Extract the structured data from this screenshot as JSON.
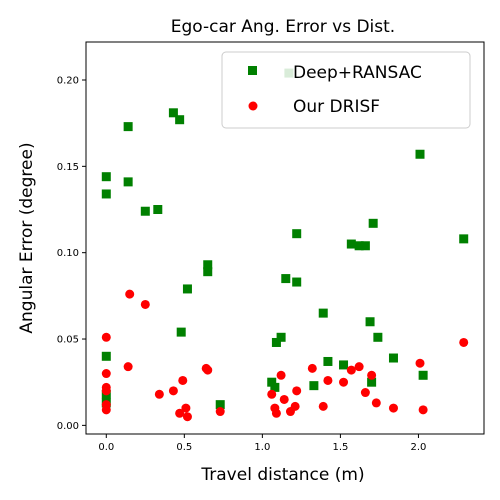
{
  "chart_data": {
    "type": "scatter",
    "title": "Ego-car Ang. Error vs Dist.",
    "xlabel": "Travel distance (m)",
    "ylabel": "Angular Error (degree)",
    "xlim": [
      -0.13,
      2.42
    ],
    "ylim": [
      -0.005,
      0.222
    ],
    "xticks": [
      0.0,
      0.5,
      1.0,
      1.5,
      2.0
    ],
    "xtick_labels": [
      "0.0",
      "0.5",
      "1.0",
      "1.5",
      "2.0"
    ],
    "yticks": [
      0.0,
      0.05,
      0.1,
      0.15,
      0.2
    ],
    "ytick_labels": [
      "0.00",
      "0.05",
      "0.10",
      "0.15",
      "0.20"
    ],
    "grid": false,
    "legend_position": "top-right",
    "series": [
      {
        "name": "Deep+RANSAC",
        "marker": "square",
        "color": "#008000",
        "points": [
          [
            0.0,
            0.134
          ],
          [
            0.0,
            0.144
          ],
          [
            0.0,
            0.04
          ],
          [
            0.0,
            0.018
          ],
          [
            0.0,
            0.013
          ],
          [
            0.14,
            0.173
          ],
          [
            0.14,
            0.141
          ],
          [
            0.25,
            0.124
          ],
          [
            0.33,
            0.125
          ],
          [
            0.43,
            0.181
          ],
          [
            0.47,
            0.177
          ],
          [
            0.48,
            0.054
          ],
          [
            0.52,
            0.079
          ],
          [
            0.65,
            0.093
          ],
          [
            0.65,
            0.089
          ],
          [
            0.73,
            0.012
          ],
          [
            1.06,
            0.025
          ],
          [
            1.08,
            0.022
          ],
          [
            1.09,
            0.048
          ],
          [
            1.12,
            0.051
          ],
          [
            1.15,
            0.085
          ],
          [
            1.17,
            0.204
          ],
          [
            1.22,
            0.111
          ],
          [
            1.22,
            0.083
          ],
          [
            1.33,
            0.023
          ],
          [
            1.39,
            0.065
          ],
          [
            1.42,
            0.037
          ],
          [
            1.52,
            0.035
          ],
          [
            1.57,
            0.105
          ],
          [
            1.62,
            0.104
          ],
          [
            1.66,
            0.104
          ],
          [
            1.69,
            0.06
          ],
          [
            1.7,
            0.025
          ],
          [
            1.71,
            0.117
          ],
          [
            1.74,
            0.051
          ],
          [
            1.84,
            0.039
          ],
          [
            2.01,
            0.157
          ],
          [
            2.03,
            0.029
          ],
          [
            2.29,
            0.108
          ]
        ]
      },
      {
        "name": "Our DRISF",
        "marker": "circle",
        "color": "#ff0000",
        "points": [
          [
            0.0,
            0.051
          ],
          [
            0.0,
            0.03
          ],
          [
            0.0,
            0.022
          ],
          [
            0.0,
            0.02
          ],
          [
            0.0,
            0.012
          ],
          [
            0.0,
            0.009
          ],
          [
            0.14,
            0.034
          ],
          [
            0.15,
            0.076
          ],
          [
            0.25,
            0.07
          ],
          [
            0.34,
            0.018
          ],
          [
            0.43,
            0.02
          ],
          [
            0.47,
            0.007
          ],
          [
            0.49,
            0.026
          ],
          [
            0.51,
            0.01
          ],
          [
            0.52,
            0.005
          ],
          [
            0.64,
            0.033
          ],
          [
            0.65,
            0.032
          ],
          [
            0.73,
            0.008
          ],
          [
            1.06,
            0.018
          ],
          [
            1.08,
            0.01
          ],
          [
            1.09,
            0.007
          ],
          [
            1.12,
            0.029
          ],
          [
            1.14,
            0.015
          ],
          [
            1.18,
            0.008
          ],
          [
            1.21,
            0.011
          ],
          [
            1.22,
            0.02
          ],
          [
            1.32,
            0.033
          ],
          [
            1.39,
            0.011
          ],
          [
            1.42,
            0.026
          ],
          [
            1.52,
            0.025
          ],
          [
            1.57,
            0.032
          ],
          [
            1.62,
            0.034
          ],
          [
            1.66,
            0.019
          ],
          [
            1.7,
            0.029
          ],
          [
            1.73,
            0.013
          ],
          [
            1.84,
            0.01
          ],
          [
            2.01,
            0.036
          ],
          [
            2.03,
            0.009
          ],
          [
            2.29,
            0.048
          ]
        ]
      }
    ]
  }
}
